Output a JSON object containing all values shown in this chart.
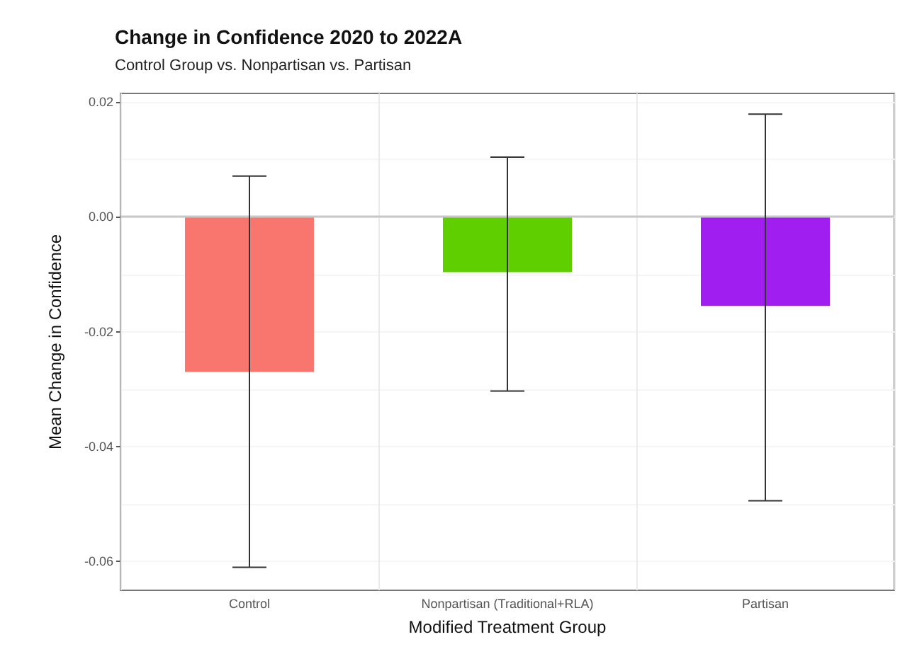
{
  "chart_data": {
    "type": "bar",
    "title": "Change in Confidence 2020 to 2022A",
    "subtitle": "Control Group vs. Nonpartisan vs. Partisan",
    "xlabel": "Modified Treatment Group",
    "ylabel": "Mean Change in Confidence",
    "categories": [
      "Control",
      "Nonpartisan (Traditional+RLA)",
      "Partisan"
    ],
    "values": [
      -0.027,
      -0.0096,
      -0.0155
    ],
    "colors": [
      "#f8766d",
      "#5fcf00",
      "#a11ef0"
    ],
    "errors": [
      [
        -0.061,
        0.0071
      ],
      [
        -0.0303,
        0.0104
      ],
      [
        -0.0494,
        0.0179
      ]
    ],
    "ylim": [
      -0.065,
      0.0215
    ],
    "yticks": [
      {
        "value": -0.06,
        "label": "-0.06"
      },
      {
        "value": -0.04,
        "label": "-0.04"
      },
      {
        "value": -0.02,
        "label": "-0.02"
      },
      {
        "value": 0,
        "label": "0.00"
      },
      {
        "value": 0.02,
        "label": "0.02"
      }
    ],
    "ref_lines": [
      {
        "axis": "y",
        "value": 0,
        "color": "#c8c8c8"
      }
    ],
    "grid": true
  }
}
